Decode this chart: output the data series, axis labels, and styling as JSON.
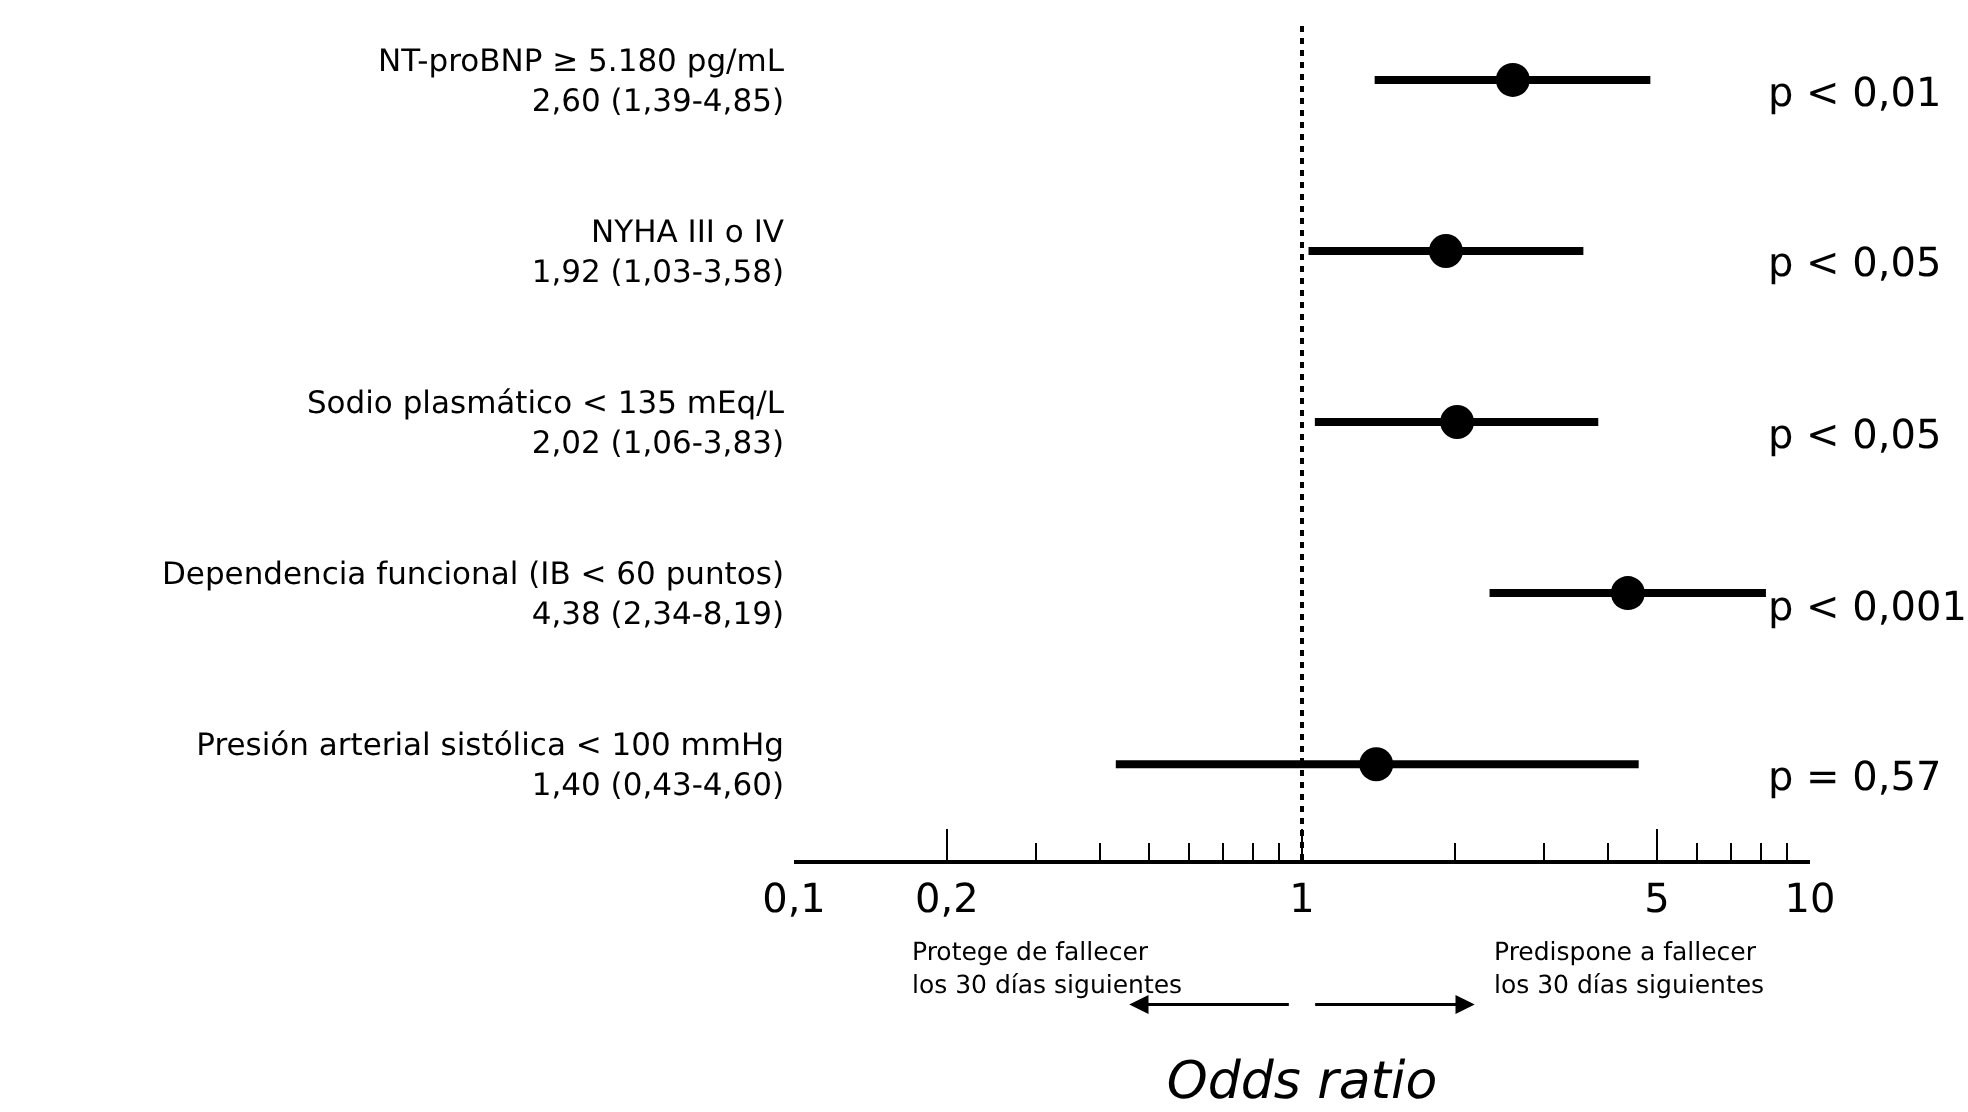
{
  "chart_data": {
    "type": "scatter",
    "orientation": "horizontal",
    "xlabel": "Odds ratio",
    "categories": [
      "NT-proBNP ≥ 5.180 pg/mL",
      "NYHA III o IV",
      "Sodio plasmático < 135 mEq/L",
      "Dependencia funcional (IB < 60 puntos)",
      "Presión arterial sistólica < 100 mmHg"
    ],
    "values": [
      2.6,
      1.92,
      2.02,
      4.38,
      1.4
    ],
    "errors": [
      [
        1.39,
        4.85
      ],
      [
        1.03,
        3.58
      ],
      [
        1.06,
        3.83
      ],
      [
        2.34,
        8.19
      ],
      [
        0.43,
        4.6
      ]
    ],
    "value_labels": [
      "2,60 (1,39-4,85)",
      "1,92 (1,03-3,58)",
      "2,02 (1,06-3,83)",
      "4,38 (2,34-8,19)",
      "1,40 (0,43-4,60)"
    ],
    "color": "#000000",
    "marker": "circle",
    "xlim": [
      0.1,
      10
    ],
    "xticks": [
      {
        "value": 0.1,
        "label": "0,1"
      },
      {
        "value": 0.2,
        "label": "0,2"
      },
      1,
      5,
      10
    ],
    "ref_lines": [
      {
        "axis": "x",
        "value": 1,
        "line_style": "dotted",
        "color": "#000000"
      }
    ],
    "annotations": [
      "p < 0,01",
      "p < 0,05",
      "p < 0,05",
      "p < 0,001",
      "p = 0,57",
      "Protege de fallecer\nlos 30 días siguientes",
      "Predispone a fallecer\nlos 30 días siguientes"
    ],
    "log": "x"
  }
}
